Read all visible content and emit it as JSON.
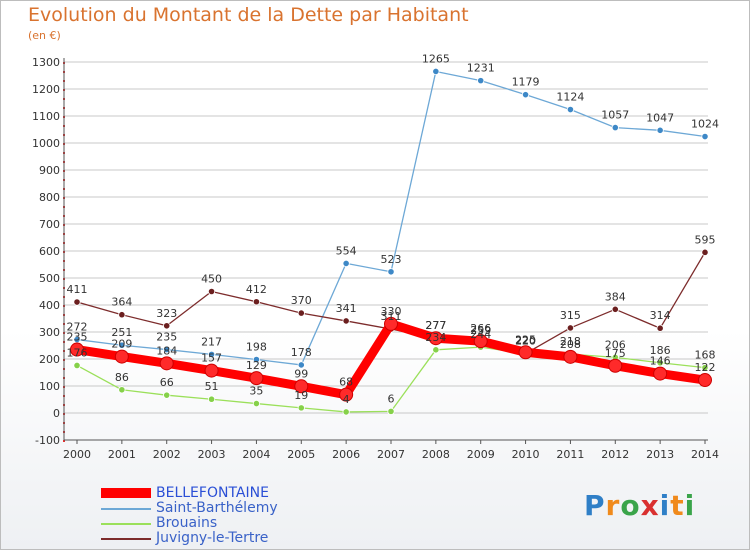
{
  "title": "Evolution du Montant de la Dette par Habitant",
  "subtitle": "(en €)",
  "logo": "Proxiti",
  "colors": {
    "title": "#d9732f",
    "grid": "#c8c8c8",
    "axis_dots": "#e03030"
  },
  "chart_data": {
    "type": "line",
    "title": "Evolution du Montant de la Dette par Habitant",
    "subtitle": "(en €)",
    "xlabel": "",
    "ylabel": "",
    "x": [
      "2000",
      "2001",
      "2002",
      "2003",
      "2004",
      "2005",
      "2006",
      "2007",
      "2008",
      "2009",
      "2010",
      "2011",
      "2012",
      "2013",
      "2014"
    ],
    "ylim": [
      -100,
      1300
    ],
    "yticks": [
      -100,
      0,
      100,
      200,
      300,
      400,
      500,
      600,
      700,
      800,
      900,
      1000,
      1100,
      1200,
      1300
    ],
    "grid": "horizontal",
    "legend_position": "bottom-left",
    "series": [
      {
        "name": "BELLEFONTAINE",
        "color": "#ff0000",
        "point_color": "#ff2a2a",
        "values": [
          235,
          209,
          184,
          157,
          129,
          99,
          68,
          330,
          277,
          266,
          225,
          208,
          175,
          146,
          122
        ],
        "labels": [
          "235",
          "209",
          "184",
          "157",
          "129",
          "99",
          "68",
          "330",
          "277",
          "266",
          "225",
          "208",
          "175",
          "146",
          "122"
        ]
      },
      {
        "name": "Saint-Barthélemy",
        "color": "#6da8d6",
        "point_color": "#3d88c7",
        "values": [
          272,
          251,
          235,
          217,
          198,
          178,
          554,
          523,
          1265,
          1231,
          1179,
          1124,
          1057,
          1047,
          1024
        ],
        "labels": [
          "272",
          "251",
          "235",
          "217",
          "198",
          "178",
          "554",
          "523",
          "1265",
          "1231",
          "1179",
          "1124",
          "1057",
          "1047",
          "1024"
        ]
      },
      {
        "name": "Brouains",
        "color": "#9be05a",
        "point_color": "#86d14a",
        "values": [
          176,
          86,
          66,
          51,
          35,
          19,
          4,
          6,
          234,
          244,
          220,
          218,
          206,
          186,
          168
        ],
        "labels": [
          "176",
          "86",
          "66",
          "51",
          "35",
          "19",
          "4",
          "6",
          "234",
          "244",
          "220",
          "218",
          "206",
          "186",
          "168"
        ]
      },
      {
        "name": "Juvigny-le-Tertre",
        "color": "#7d2c2c",
        "point_color": "#6b1f1f",
        "values": [
          411,
          364,
          323,
          450,
          412,
          370,
          341,
          311,
          277,
          259,
          220,
          315,
          384,
          314,
          595
        ],
        "labels": [
          "411",
          "364",
          "323",
          "450",
          "412",
          "370",
          "341",
          "311",
          "277",
          "259",
          "220",
          "315",
          "384",
          "314",
          "595"
        ]
      }
    ]
  }
}
